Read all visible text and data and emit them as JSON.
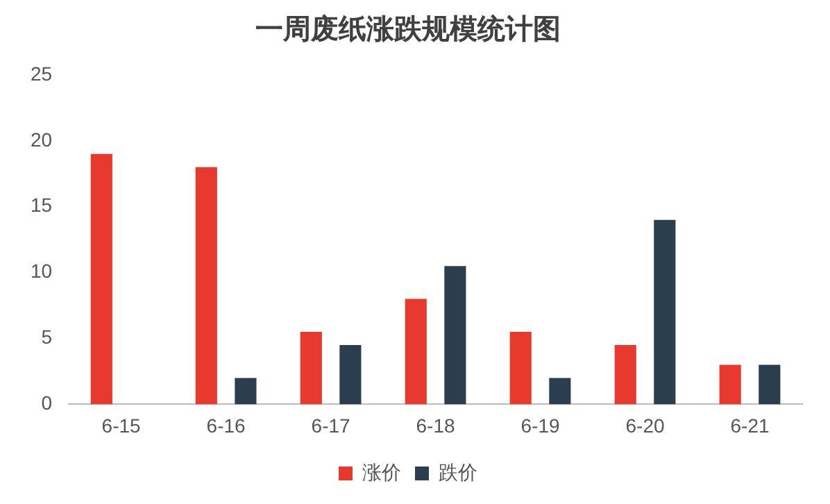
{
  "chart_data": {
    "type": "bar",
    "title": "一周废纸涨跌规模统计图",
    "categories": [
      "6-15",
      "6-16",
      "6-17",
      "6-18",
      "6-19",
      "6-20",
      "6-21"
    ],
    "series": [
      {
        "name": "涨价",
        "color": "#e8392f",
        "values": [
          19,
          18,
          5.5,
          8,
          5.5,
          4.5,
          3
        ]
      },
      {
        "name": "跌价",
        "color": "#2b3e50",
        "values": [
          0,
          2,
          4.5,
          10.5,
          2,
          14,
          3
        ]
      }
    ],
    "ylim": [
      0,
      25
    ],
    "yticks": [
      0,
      5,
      10,
      15,
      20,
      25
    ],
    "grid": false,
    "legend": "bottom"
  }
}
